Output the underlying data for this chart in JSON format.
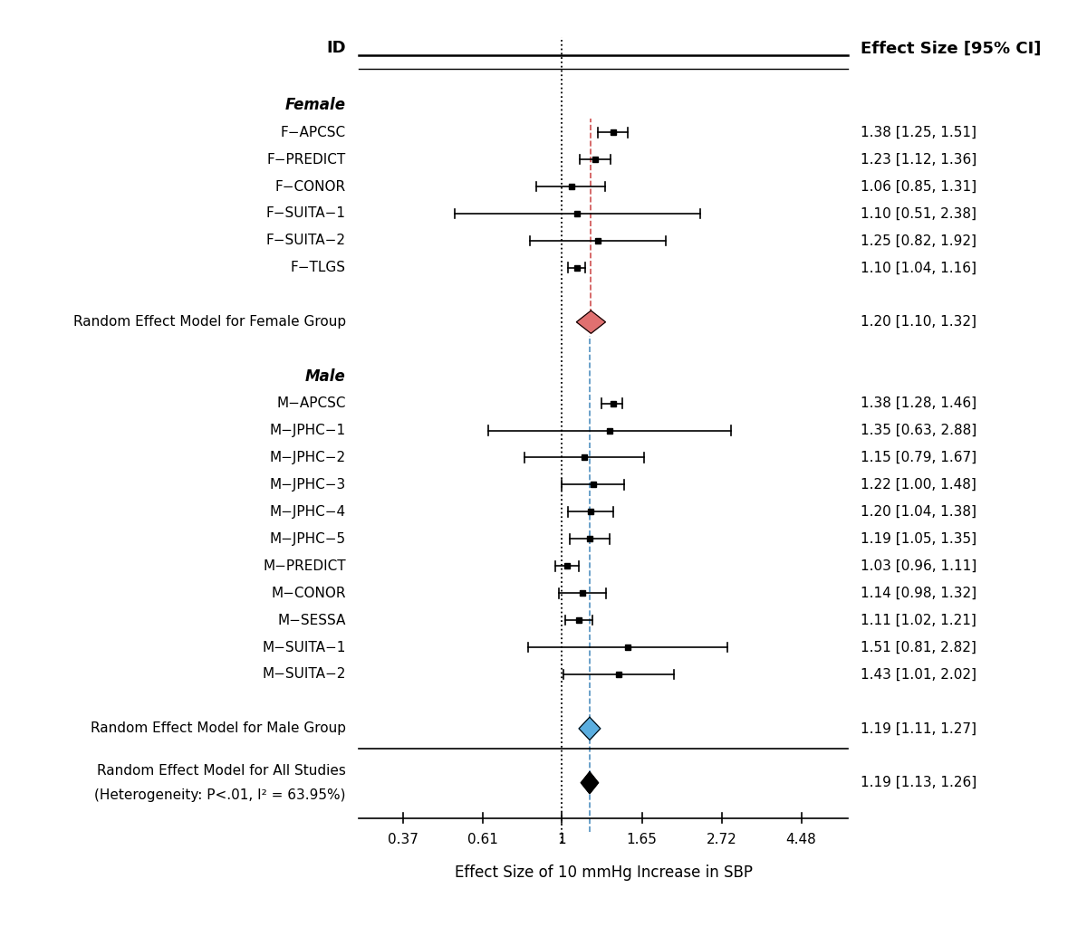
{
  "title_left": "ID",
  "title_right": "Effect Size [95% CI]",
  "xlabel": "Effect Size of 10 mmHg Increase in SBP",
  "xticks": [
    0.37,
    0.61,
    1,
    1.65,
    2.72,
    4.48
  ],
  "null_line": 1.0,
  "female_dashed": 1.2,
  "male_dashed": 1.19,
  "studies": [
    {
      "id": "Female",
      "label": "Female",
      "group_header": true,
      "y": 23
    },
    {
      "id": "F-APCSC",
      "label": "F−APCSC",
      "est": 1.38,
      "lo": 1.25,
      "hi": 1.51,
      "y": 22,
      "ci_text": "1.38 [1.25, 1.51]"
    },
    {
      "id": "F-PREDICT",
      "label": "F−PREDICT",
      "est": 1.23,
      "lo": 1.12,
      "hi": 1.36,
      "y": 21,
      "ci_text": "1.23 [1.12, 1.36]"
    },
    {
      "id": "F-CONOR",
      "label": "F−CONOR",
      "est": 1.06,
      "lo": 0.85,
      "hi": 1.31,
      "y": 20,
      "ci_text": "1.06 [0.85, 1.31]"
    },
    {
      "id": "F-SUITA-1",
      "label": "F−SUITA−1",
      "est": 1.1,
      "lo": 0.51,
      "hi": 2.38,
      "y": 19,
      "ci_text": "1.10 [0.51, 2.38]"
    },
    {
      "id": "F-SUITA-2",
      "label": "F−SUITA−2",
      "est": 1.25,
      "lo": 0.82,
      "hi": 1.92,
      "y": 18,
      "ci_text": "1.25 [0.82, 1.92]"
    },
    {
      "id": "F-TLGS",
      "label": "F−TLGS",
      "est": 1.1,
      "lo": 1.04,
      "hi": 1.16,
      "y": 17,
      "ci_text": "1.10 [1.04, 1.16]"
    },
    {
      "id": "blank_f",
      "blank": true,
      "y": 16
    },
    {
      "id": "REM_F",
      "label": "Random Effect Model for Female Group",
      "est": 1.2,
      "lo": 1.1,
      "hi": 1.32,
      "y": 15,
      "diamond": true,
      "diamond_color": "#E07070",
      "ci_text": "1.20 [1.10, 1.32]"
    },
    {
      "id": "blank_f2",
      "blank": true,
      "y": 14
    },
    {
      "id": "Male",
      "label": "Male",
      "group_header": true,
      "y": 13
    },
    {
      "id": "M-APCSC",
      "label": "M−APCSC",
      "est": 1.38,
      "lo": 1.28,
      "hi": 1.46,
      "y": 12,
      "ci_text": "1.38 [1.28, 1.46]"
    },
    {
      "id": "M-JPHC-1",
      "label": "M−JPHC−1",
      "est": 1.35,
      "lo": 0.63,
      "hi": 2.88,
      "y": 11,
      "ci_text": "1.35 [0.63, 2.88]"
    },
    {
      "id": "M-JPHC-2",
      "label": "M−JPHC−2",
      "est": 1.15,
      "lo": 0.79,
      "hi": 1.67,
      "y": 10,
      "ci_text": "1.15 [0.79, 1.67]"
    },
    {
      "id": "M-JPHC-3",
      "label": "M−JPHC−3",
      "est": 1.22,
      "lo": 1.0,
      "hi": 1.48,
      "y": 9,
      "ci_text": "1.22 [1.00, 1.48]"
    },
    {
      "id": "M-JPHC-4",
      "label": "M−JPHC−4",
      "est": 1.2,
      "lo": 1.04,
      "hi": 1.38,
      "y": 8,
      "ci_text": "1.20 [1.04, 1.38]"
    },
    {
      "id": "M-JPHC-5",
      "label": "M−JPHC−5",
      "est": 1.19,
      "lo": 1.05,
      "hi": 1.35,
      "y": 7,
      "ci_text": "1.19 [1.05, 1.35]"
    },
    {
      "id": "M-PREDICT",
      "label": "M−PREDICT",
      "est": 1.03,
      "lo": 0.96,
      "hi": 1.11,
      "y": 6,
      "ci_text": "1.03 [0.96, 1.11]"
    },
    {
      "id": "M-CONOR",
      "label": "M−CONOR",
      "est": 1.14,
      "lo": 0.98,
      "hi": 1.32,
      "y": 5,
      "ci_text": "1.14 [0.98, 1.32]"
    },
    {
      "id": "M-SESSA",
      "label": "M−SESSA",
      "est": 1.11,
      "lo": 1.02,
      "hi": 1.21,
      "y": 4,
      "ci_text": "1.11 [1.02, 1.21]"
    },
    {
      "id": "M-SUITA-1",
      "label": "M−SUITA−1",
      "est": 1.51,
      "lo": 0.81,
      "hi": 2.82,
      "y": 3,
      "ci_text": "1.51 [0.81, 2.82]"
    },
    {
      "id": "M-SUITA-2",
      "label": "M−SUITA−2",
      "est": 1.43,
      "lo": 1.01,
      "hi": 2.02,
      "y": 2,
      "ci_text": "1.43 [1.01, 2.02]"
    },
    {
      "id": "blank_m",
      "blank": true,
      "y": 1
    },
    {
      "id": "REM_M",
      "label": "Random Effect Model for Male Group",
      "est": 1.19,
      "lo": 1.11,
      "hi": 1.27,
      "y": 0,
      "diamond": true,
      "diamond_color": "#5AAEE0",
      "ci_text": "1.19 [1.11, 1.27]"
    }
  ],
  "all_study_rem": {
    "est": 1.19,
    "lo": 1.13,
    "hi": 1.26,
    "ci_text": "1.19 [1.13, 1.26]"
  },
  "heterogeneity_line1": "Random Effect Model for All Studies",
  "heterogeneity_line2": "(Heterogeneity: P<.01, I² = 63.95%)",
  "background_color": "#ffffff"
}
